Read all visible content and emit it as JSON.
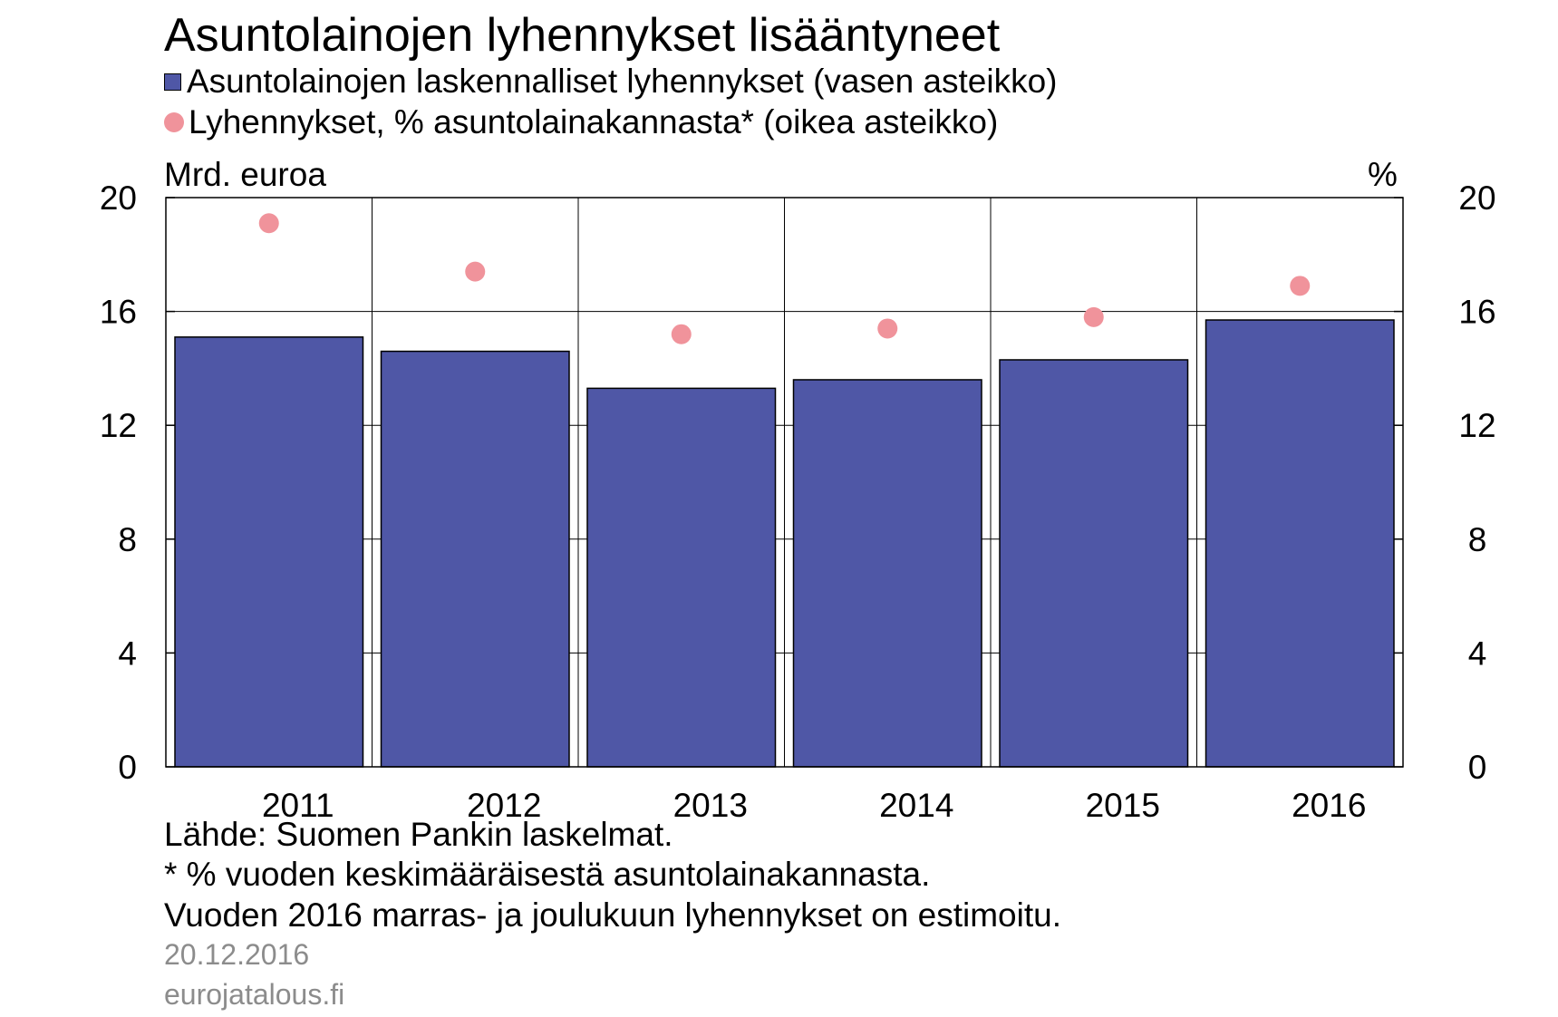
{
  "chart_data": {
    "type": "bar",
    "title": "Asuntolainojen lyhennykset lisääntyneet",
    "categories": [
      "2011",
      "2012",
      "2013",
      "2014",
      "2015",
      "2016"
    ],
    "series": [
      {
        "name": "Asuntolainojen laskennalliset lyhennykset (vasen asteikko)",
        "type": "bar",
        "axis": "left",
        "color": "#4f57a6",
        "values": [
          15.1,
          14.6,
          13.3,
          13.6,
          14.3,
          15.7
        ]
      },
      {
        "name": "Lyhennykset, % asuntolainakannasta* (oikea asteikko)",
        "type": "scatter",
        "axis": "right",
        "color": "#f0939b",
        "values": [
          19.1,
          17.4,
          15.2,
          15.4,
          15.8,
          16.9
        ]
      }
    ],
    "ylabel_left": "Mrd. euroa",
    "ylabel_right": "%",
    "ylim": [
      0,
      20
    ],
    "yticks": [
      "0",
      "4",
      "8",
      "12",
      "16",
      "20"
    ],
    "grid": true,
    "legend_position": "top-left"
  },
  "notes": [
    "Lähde: Suomen Pankin laskelmat.",
    "* % vuoden keskimääräisestä asuntolainakannasta.",
    "Vuoden 2016 marras- ja joulukuun lyhennykset on estimoitu."
  ],
  "date": "20.12.2016",
  "site": "eurojatalous.fi"
}
